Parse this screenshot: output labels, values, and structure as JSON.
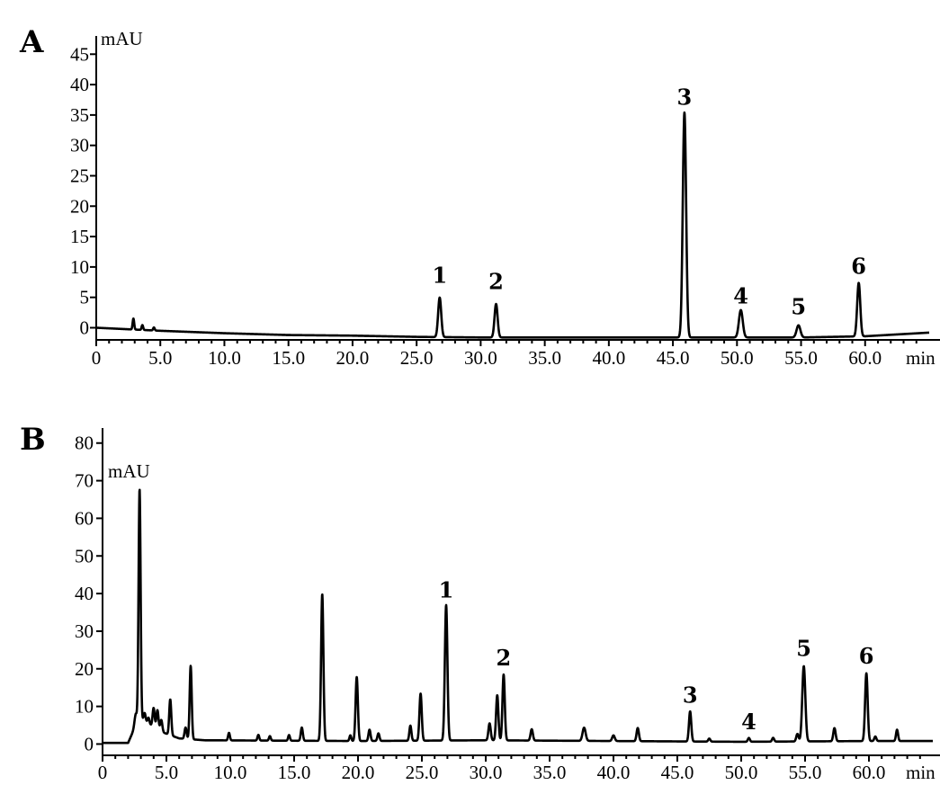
{
  "chart_data": [
    {
      "type": "line",
      "panel_label": "A",
      "ylabel": "mAU",
      "xlabel": "min",
      "xlim": [
        0,
        65
      ],
      "ylim": [
        -2,
        48
      ],
      "x_ticks": [
        0,
        5,
        10,
        15,
        20,
        25,
        30,
        35,
        40,
        45,
        50,
        55,
        60
      ],
      "x_tick_labels": [
        "0",
        "5.0",
        "10.0",
        "15.0",
        "20.0",
        "25.0",
        "30.0",
        "35.0",
        "40.0",
        "45.0",
        "50.0",
        "55.0",
        "60.0"
      ],
      "y_ticks": [
        0,
        5,
        10,
        15,
        20,
        25,
        30,
        35,
        40,
        45
      ],
      "y_tick_labels": [
        "0",
        "5",
        "10",
        "15",
        "20",
        "25",
        "30",
        "35",
        "40",
        "45"
      ],
      "baseline": [
        [
          0,
          0.0
        ],
        [
          5,
          -0.5
        ],
        [
          10,
          -0.9
        ],
        [
          15,
          -1.2
        ],
        [
          20,
          -1.3
        ],
        [
          25,
          -1.5
        ],
        [
          30,
          -1.6
        ],
        [
          35,
          -1.6
        ],
        [
          40,
          -1.6
        ],
        [
          45,
          -1.6
        ],
        [
          50,
          -1.6
        ],
        [
          55,
          -1.6
        ],
        [
          60,
          -1.4
        ],
        [
          65,
          -0.8
        ]
      ],
      "peaks": [
        {
          "x": 2.9,
          "height": 1.8,
          "width": 0.06
        },
        {
          "x": 3.6,
          "height": 0.8,
          "width": 0.06
        },
        {
          "x": 4.5,
          "height": 0.5,
          "width": 0.06
        },
        {
          "x": 26.8,
          "height": 6.5,
          "width": 0.12
        },
        {
          "x": 31.2,
          "height": 5.5,
          "width": 0.12
        },
        {
          "x": 45.9,
          "height": 37.0,
          "width": 0.13
        },
        {
          "x": 50.3,
          "height": 4.5,
          "width": 0.15
        },
        {
          "x": 54.8,
          "height": 2.0,
          "width": 0.15
        },
        {
          "x": 59.5,
          "height": 8.8,
          "width": 0.12
        }
      ],
      "peak_labels": [
        {
          "label": "1",
          "x": 26.8,
          "y": 6.5
        },
        {
          "label": "2",
          "x": 31.2,
          "y": 5.5
        },
        {
          "label": "3",
          "x": 45.9,
          "y": 35.8
        },
        {
          "label": "4",
          "x": 50.3,
          "y": 3.1
        },
        {
          "label": "5",
          "x": 54.8,
          "y": 1.3
        },
        {
          "label": "6",
          "x": 59.5,
          "y": 8.0
        }
      ]
    },
    {
      "type": "line",
      "panel_label": "B",
      "ylabel": "mAU",
      "xlabel": "min",
      "xlim": [
        0,
        65
      ],
      "ylim": [
        -3,
        84
      ],
      "x_ticks": [
        0,
        5,
        10,
        15,
        20,
        25,
        30,
        35,
        40,
        45,
        50,
        55,
        60
      ],
      "x_tick_labels": [
        "0",
        "5.0",
        "10.0",
        "15.0",
        "20.0",
        "25.0",
        "30.0",
        "35.0",
        "40.0",
        "45.0",
        "50.0",
        "55.0",
        "60.0"
      ],
      "y_ticks": [
        0,
        10,
        20,
        30,
        40,
        50,
        60,
        70,
        80
      ],
      "y_tick_labels": [
        "0",
        "10",
        "20",
        "30",
        "40",
        "50",
        "60",
        "70",
        "80"
      ],
      "baseline": [
        [
          0,
          0.3
        ],
        [
          2,
          0.3
        ],
        [
          2.6,
          5
        ],
        [
          3.2,
          6.5
        ],
        [
          3.8,
          5
        ],
        [
          4.8,
          3
        ],
        [
          6,
          1.5
        ],
        [
          8,
          1.0
        ],
        [
          20,
          0.8
        ],
        [
          30,
          1.0
        ],
        [
          40,
          0.8
        ],
        [
          50,
          0.6
        ],
        [
          60,
          0.8
        ],
        [
          65,
          0.8
        ]
      ],
      "peaks": [
        {
          "x": 2.6,
          "height": 3,
          "width": 0.1
        },
        {
          "x": 2.9,
          "height": 62,
          "width": 0.08
        },
        {
          "x": 3.3,
          "height": 2,
          "width": 0.07
        },
        {
          "x": 3.6,
          "height": 1.5,
          "width": 0.07
        },
        {
          "x": 4.0,
          "height": 5,
          "width": 0.08
        },
        {
          "x": 4.3,
          "height": 5,
          "width": 0.08
        },
        {
          "x": 4.6,
          "height": 3,
          "width": 0.08
        },
        {
          "x": 5.3,
          "height": 9.5,
          "width": 0.08
        },
        {
          "x": 6.5,
          "height": 3,
          "width": 0.08
        },
        {
          "x": 6.9,
          "height": 19.5,
          "width": 0.08
        },
        {
          "x": 9.9,
          "height": 2,
          "width": 0.07
        },
        {
          "x": 12.2,
          "height": 1.5,
          "width": 0.07
        },
        {
          "x": 13.1,
          "height": 1.2,
          "width": 0.07
        },
        {
          "x": 14.6,
          "height": 1.5,
          "width": 0.07
        },
        {
          "x": 15.6,
          "height": 3.5,
          "width": 0.08
        },
        {
          "x": 17.2,
          "height": 39,
          "width": 0.09
        },
        {
          "x": 19.4,
          "height": 1.5,
          "width": 0.07
        },
        {
          "x": 19.9,
          "height": 17,
          "width": 0.09
        },
        {
          "x": 20.9,
          "height": 3,
          "width": 0.08
        },
        {
          "x": 21.6,
          "height": 2,
          "width": 0.08
        },
        {
          "x": 24.1,
          "height": 4,
          "width": 0.08
        },
        {
          "x": 24.9,
          "height": 12.5,
          "width": 0.09
        },
        {
          "x": 26.9,
          "height": 36,
          "width": 0.1
        },
        {
          "x": 30.3,
          "height": 4.5,
          "width": 0.09
        },
        {
          "x": 30.9,
          "height": 12,
          "width": 0.09
        },
        {
          "x": 31.4,
          "height": 17.5,
          "width": 0.09
        },
        {
          "x": 33.6,
          "height": 3,
          "width": 0.09
        },
        {
          "x": 37.7,
          "height": 3.5,
          "width": 0.12
        },
        {
          "x": 40.0,
          "height": 1.5,
          "width": 0.1
        },
        {
          "x": 41.9,
          "height": 3.5,
          "width": 0.09
        },
        {
          "x": 46.0,
          "height": 8,
          "width": 0.09
        },
        {
          "x": 47.5,
          "height": 0.8,
          "width": 0.08
        },
        {
          "x": 50.6,
          "height": 1.0,
          "width": 0.08
        },
        {
          "x": 52.5,
          "height": 1.0,
          "width": 0.08
        },
        {
          "x": 54.4,
          "height": 2.0,
          "width": 0.09
        },
        {
          "x": 54.9,
          "height": 20,
          "width": 0.12
        },
        {
          "x": 57.3,
          "height": 3.5,
          "width": 0.09
        },
        {
          "x": 59.8,
          "height": 18,
          "width": 0.1
        },
        {
          "x": 60.5,
          "height": 1.2,
          "width": 0.08
        },
        {
          "x": 62.2,
          "height": 3.0,
          "width": 0.08
        }
      ],
      "peak_labels": [
        {
          "label": "1",
          "x": 26.9,
          "y": 37.5
        },
        {
          "label": "2",
          "x": 31.4,
          "y": 19.5
        },
        {
          "label": "3",
          "x": 46.0,
          "y": 9.5
        },
        {
          "label": "4",
          "x": 50.6,
          "y": 2.5
        },
        {
          "label": "5",
          "x": 54.9,
          "y": 22
        },
        {
          "label": "6",
          "x": 59.8,
          "y": 20
        }
      ]
    }
  ]
}
